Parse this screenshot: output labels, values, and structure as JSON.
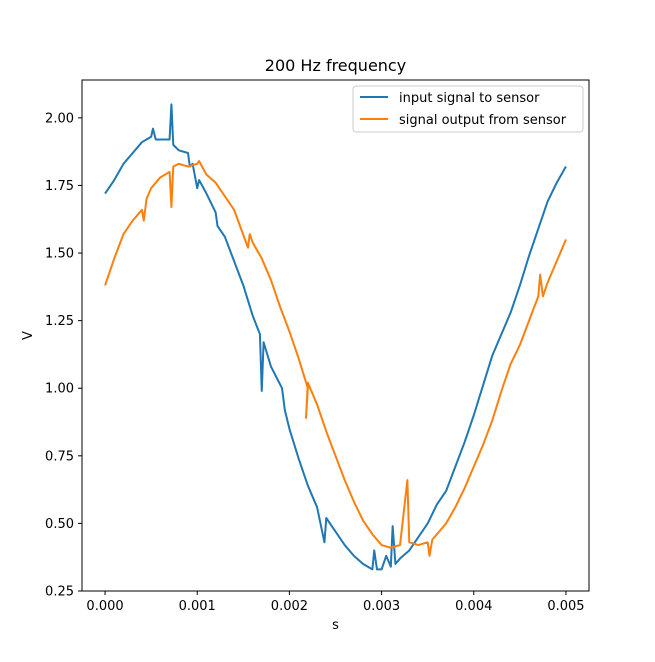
{
  "chart_data": {
    "type": "line",
    "title": "200 Hz frequency",
    "xlabel": "s",
    "ylabel": "V",
    "xlim": [
      -0.00025,
      0.00525
    ],
    "ylim": [
      0.25,
      2.14
    ],
    "xticks": [
      0.0,
      0.001,
      0.002,
      0.003,
      0.004,
      0.005
    ],
    "xtick_labels": [
      "0.000",
      "0.001",
      "0.002",
      "0.003",
      "0.004",
      "0.005"
    ],
    "yticks": [
      0.25,
      0.5,
      0.75,
      1.0,
      1.25,
      1.5,
      1.75,
      2.0
    ],
    "ytick_labels": [
      "0.25",
      "0.50",
      "0.75",
      "1.00",
      "1.25",
      "1.50",
      "1.75",
      "2.00"
    ],
    "grid": false,
    "legend_position": "top-right",
    "series": [
      {
        "name": "input signal to sensor",
        "color": "#1f77b4",
        "x": [
          0.0,
          0.0001,
          0.0002,
          0.0003,
          0.0004,
          0.0005,
          0.00052,
          0.00055,
          0.0006,
          0.0007,
          0.00072,
          0.00074,
          0.0008,
          0.0009,
          0.00092,
          0.00095,
          0.001,
          0.00102,
          0.0011,
          0.0012,
          0.00122,
          0.0013,
          0.0014,
          0.0015,
          0.0016,
          0.00168,
          0.0017,
          0.00172,
          0.0018,
          0.00192,
          0.00195,
          0.002,
          0.0021,
          0.0022,
          0.0023,
          0.00238,
          0.0024,
          0.0025,
          0.0026,
          0.0027,
          0.0028,
          0.0029,
          0.00292,
          0.00295,
          0.003,
          0.00305,
          0.0031,
          0.00312,
          0.00315,
          0.0032,
          0.0033,
          0.0034,
          0.0035,
          0.0036,
          0.0037,
          0.0038,
          0.0039,
          0.004,
          0.0041,
          0.0042,
          0.0043,
          0.0044,
          0.0045,
          0.0046,
          0.0047,
          0.0048,
          0.0049,
          0.005
        ],
        "y": [
          1.72,
          1.77,
          1.83,
          1.87,
          1.91,
          1.93,
          1.96,
          1.92,
          1.92,
          1.92,
          2.05,
          1.9,
          1.88,
          1.87,
          1.82,
          1.83,
          1.74,
          1.77,
          1.72,
          1.65,
          1.6,
          1.56,
          1.47,
          1.38,
          1.27,
          1.2,
          0.99,
          1.17,
          1.08,
          1.0,
          0.92,
          0.85,
          0.74,
          0.64,
          0.56,
          0.43,
          0.52,
          0.47,
          0.42,
          0.38,
          0.35,
          0.33,
          0.4,
          0.33,
          0.33,
          0.38,
          0.34,
          0.49,
          0.35,
          0.37,
          0.4,
          0.45,
          0.5,
          0.57,
          0.62,
          0.71,
          0.8,
          0.9,
          1.01,
          1.12,
          1.2,
          1.28,
          1.38,
          1.49,
          1.59,
          1.69,
          1.76,
          1.82
        ]
      },
      {
        "name": "signal output from sensor",
        "color": "#ff7f0e",
        "x": [
          0.0,
          0.0001,
          0.0002,
          0.0003,
          0.0004,
          0.00042,
          0.00045,
          0.0005,
          0.0006,
          0.0007,
          0.00072,
          0.00074,
          0.0008,
          0.0009,
          0.001,
          0.00102,
          0.0011,
          0.0012,
          0.0013,
          0.0014,
          0.00155,
          0.00157,
          0.0016,
          0.0017,
          0.0018,
          0.0019,
          0.002,
          0.0021,
          0.0022,
          0.00218,
          0.0022,
          0.0023,
          0.0024,
          0.0025,
          0.0026,
          0.0027,
          0.0028,
          0.0029,
          0.003,
          0.0031,
          0.0032,
          0.00328,
          0.0033,
          0.0034,
          0.0035,
          0.00352,
          0.00355,
          0.0036,
          0.0037,
          0.0038,
          0.0039,
          0.004,
          0.0041,
          0.0042,
          0.0043,
          0.0044,
          0.0045,
          0.0046,
          0.0047,
          0.00472,
          0.00475,
          0.0048,
          0.0049,
          0.005
        ],
        "y": [
          1.38,
          1.48,
          1.57,
          1.62,
          1.66,
          1.62,
          1.7,
          1.74,
          1.78,
          1.8,
          1.67,
          1.82,
          1.83,
          1.82,
          1.83,
          1.84,
          1.79,
          1.76,
          1.71,
          1.66,
          1.52,
          1.57,
          1.54,
          1.48,
          1.4,
          1.3,
          1.21,
          1.11,
          1.0,
          0.89,
          1.02,
          0.94,
          0.84,
          0.75,
          0.66,
          0.58,
          0.51,
          0.46,
          0.42,
          0.41,
          0.42,
          0.66,
          0.43,
          0.42,
          0.43,
          0.38,
          0.44,
          0.46,
          0.5,
          0.56,
          0.63,
          0.71,
          0.79,
          0.88,
          0.99,
          1.09,
          1.16,
          1.25,
          1.34,
          1.42,
          1.34,
          1.39,
          1.47,
          1.55
        ]
      }
    ]
  }
}
